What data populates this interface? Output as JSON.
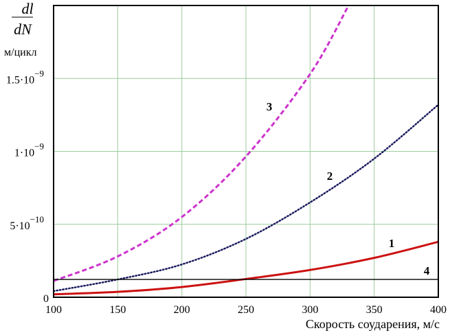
{
  "chart_data": {
    "type": "line",
    "ylabel_fraction": {
      "numerator": "dl",
      "denominator": "dN"
    },
    "ylabel_unit": "м/цикл",
    "xlabel": "Скорость соударения,  м/с",
    "xlim": [
      100,
      400
    ],
    "ylim": [
      0,
      2e-09
    ],
    "grid": true,
    "x_ticks": [
      "100",
      "150",
      "200",
      "250",
      "300",
      "350",
      "400"
    ],
    "x_tick_values": [
      100,
      150,
      200,
      250,
      300,
      350,
      400
    ],
    "y_ticks": [
      {
        "value": 0,
        "base": "0",
        "exp": ""
      },
      {
        "value": 5e-10,
        "base": "5·10",
        "exp": "−10"
      },
      {
        "value": 1e-09,
        "base": "1·10",
        "exp": "−9"
      },
      {
        "value": 1.5e-09,
        "base": "1.5·10",
        "exp": "−9"
      }
    ],
    "series": [
      {
        "label": "1",
        "color": "#cc1111",
        "style": "solid",
        "x": [
          100,
          150,
          200,
          250,
          300,
          350,
          400
        ],
        "y": [
          2e-11,
          3.7e-11,
          7e-11,
          1.25e-10,
          1.87e-10,
          2.7e-10,
          3.8e-10
        ]
      },
      {
        "label": "2",
        "color": "#1a1a5e",
        "style": "dotted",
        "x": [
          100,
          150,
          200,
          250,
          300,
          350,
          400
        ],
        "y": [
          4.2e-11,
          1.22e-10,
          2.25e-10,
          4e-10,
          6.5e-10,
          9.5e-10,
          1.32e-09
        ]
      },
      {
        "label": "3",
        "color": "#cc33cc",
        "style": "dashed",
        "x": [
          100,
          150,
          200,
          250,
          300,
          330
        ],
        "y": [
          1.12e-10,
          2.8e-10,
          5.5e-10,
          9.65e-10,
          1.53e-09,
          2e-09
        ]
      },
      {
        "label": "4",
        "color": "#000000",
        "style": "solid-thin",
        "x": [
          100,
          400
        ],
        "y": [
          1.22e-10,
          1.22e-10
        ]
      }
    ],
    "grid_color": "#9ccc9c"
  }
}
